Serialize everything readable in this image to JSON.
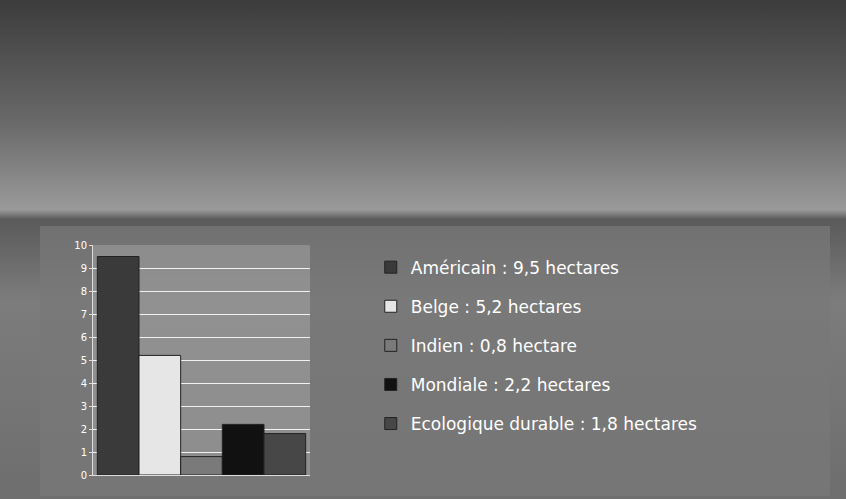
{
  "chart_data": {
    "type": "bar",
    "categories": [
      null
    ],
    "series": [
      {
        "name": "Américain : 9,5 hectares",
        "color": "#3a3a3a",
        "values": [
          9.5
        ]
      },
      {
        "name": "Belge : 5,2 hectares",
        "color": "#e6e6e6",
        "values": [
          5.2
        ]
      },
      {
        "name": "Indien : 0,8 hectare",
        "color": "#7a7a7a",
        "values": [
          0.8
        ]
      },
      {
        "name": "Mondiale : 2,2 hectares",
        "color": "#111111",
        "values": [
          2.2
        ]
      },
      {
        "name": "Ecologique durable : 1,8 hectares",
        "color": "#474747",
        "values": [
          1.8
        ]
      }
    ],
    "ylim": [
      0,
      10
    ],
    "yticks": [
      0,
      1,
      2,
      3,
      4,
      5,
      6,
      7,
      8,
      9,
      10
    ],
    "grid": true,
    "legend": "right",
    "tick_labels": "y"
  }
}
